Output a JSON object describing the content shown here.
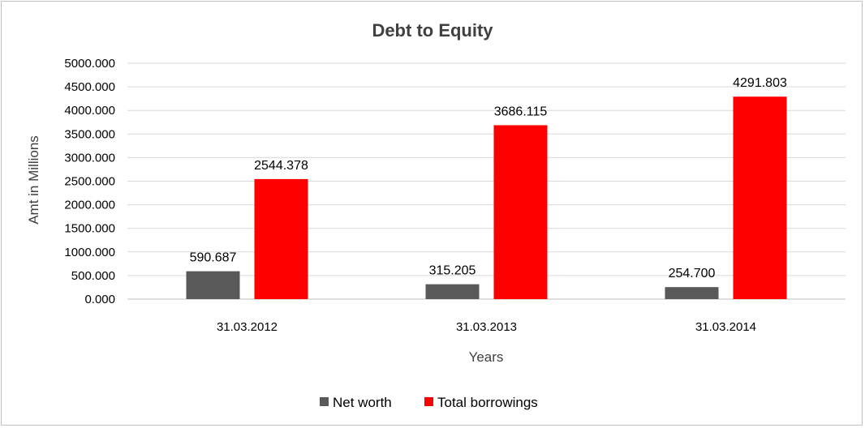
{
  "chart_data": {
    "type": "bar",
    "title": "Debt to Equity",
    "xlabel": "Years",
    "ylabel": "Amt in Millions",
    "categories": [
      "31.03.2012",
      "31.03.2013",
      "31.03.2014"
    ],
    "series": [
      {
        "name": "Net worth",
        "values": [
          590.687,
          315.205,
          254.7
        ],
        "labels": [
          "590.687",
          "315.205",
          "254.700"
        ],
        "color": "#595959"
      },
      {
        "name": "Total borrowings",
        "values": [
          2544.378,
          3686.115,
          4291.803
        ],
        "labels": [
          "2544.378",
          "3686.115",
          "4291.803"
        ],
        "color": "#ff0000"
      }
    ],
    "ylim": [
      0,
      5000
    ],
    "yticks": [
      0,
      500,
      1000,
      1500,
      2000,
      2500,
      3000,
      3500,
      4000,
      4500,
      5000
    ],
    "ytick_labels": [
      "0.000",
      "500.000",
      "1000.000",
      "1500.000",
      "2000.000",
      "2500.000",
      "3000.000",
      "3500.000",
      "4000.000",
      "4500.000",
      "5000.000"
    ],
    "grid": true,
    "legend_position": "bottom"
  }
}
